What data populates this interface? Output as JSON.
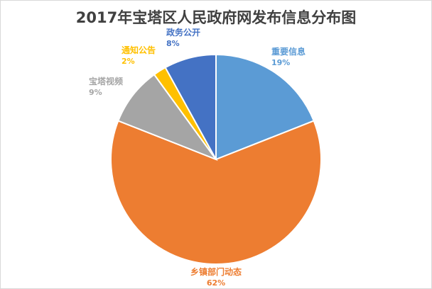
{
  "chart_data": {
    "type": "pie",
    "title": "2017年宝塔区人民政府网发布信息分布图",
    "series": [
      {
        "name": "重要信息",
        "value": 19,
        "label": "19%",
        "color": "#5b9bd5"
      },
      {
        "name": "乡镇部门动态",
        "value": 62,
        "label": "62%",
        "color": "#ed7d31"
      },
      {
        "name": "宝塔视频",
        "value": 9,
        "label": "9%",
        "color": "#a5a5a5"
      },
      {
        "name": "通知公告",
        "value": 2,
        "label": "2%",
        "color": "#ffc000"
      },
      {
        "name": "政务公开",
        "value": 8,
        "label": "8%",
        "color": "#4472c4"
      }
    ],
    "start_angle_deg": 0,
    "direction": "clockwise",
    "legend": "none",
    "data_labels": "outside"
  }
}
